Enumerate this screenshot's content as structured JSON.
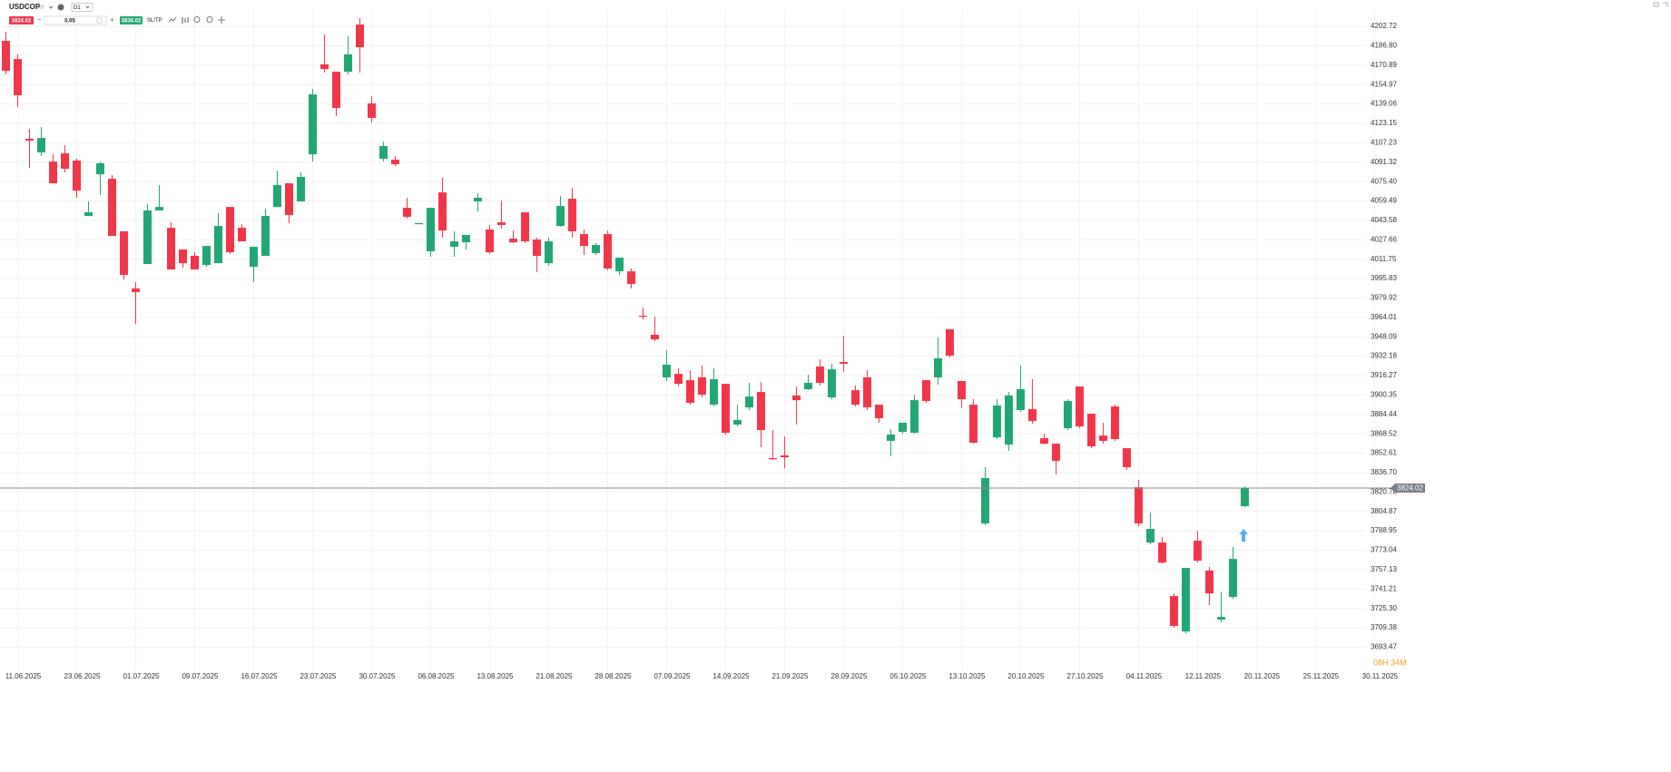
{
  "toolbar": {
    "symbol": "USDCOP",
    "instrument_type": "cfd",
    "timeframe": "D1",
    "sell": 3824.02,
    "volume": 0.05,
    "buy": 3836.02,
    "sltp": "SL/TP"
  },
  "countdown": "08H 34M",
  "chart_data": {
    "type": "candlestick",
    "up_color": "#22a774",
    "down_color": "#f2364a",
    "grid": true,
    "ylim": [
      3673.7,
      4216.9
    ],
    "yticks": [
      4202.72,
      {
        "value": 4186.8,
        "label": "4186.80"
      },
      4170.89,
      4154.97,
      4139.06,
      4123.15,
      4107.23,
      4091.32,
      {
        "value": 4075.4,
        "label": "4075.40"
      },
      4059.49,
      4043.58,
      4027.66,
      4011.75,
      3995.83,
      3979.92,
      3964.01,
      3948.09,
      3932.18,
      3916.27,
      3900.35,
      3884.44,
      3868.52,
      3852.61,
      {
        "value": 3836.7,
        "label": "3836.70"
      },
      3820.78,
      3804.87,
      3788.95,
      3773.04,
      3757.13,
      3741.21,
      {
        "value": 3725.3,
        "label": "3725.30"
      },
      3709.38,
      3693.47
    ],
    "xlim": [
      -0.5,
      117.2
    ],
    "xticks": [
      {
        "value": 1,
        "label": "11.06.2025"
      },
      {
        "value": 6,
        "label": "23.06.2025"
      },
      {
        "value": 11,
        "label": "01.07.2025"
      },
      {
        "value": 16,
        "label": "09.07.2025"
      },
      {
        "value": 21,
        "label": "16.07.2025"
      },
      {
        "value": 26,
        "label": "23.07.2025"
      },
      {
        "value": 31,
        "label": "30.07.2025"
      },
      {
        "value": 36,
        "label": "06.08.2025"
      },
      {
        "value": 41,
        "label": "13.08.2025"
      },
      {
        "value": 46,
        "label": "21.08.2025"
      },
      {
        "value": 51,
        "label": "28.08.2025"
      },
      {
        "value": 56,
        "label": "07.09.2025"
      },
      {
        "value": 61,
        "label": "14.09.2025"
      },
      {
        "value": 66,
        "label": "21.09.2025"
      },
      {
        "value": 71,
        "label": "28.09.2025"
      },
      {
        "value": 76,
        "label": "05.10.2025"
      },
      {
        "value": 81,
        "label": "13.10.2025"
      },
      {
        "value": 86,
        "label": "20.10.2025"
      },
      {
        "value": 91,
        "label": "27.10.2025"
      },
      {
        "value": 96,
        "label": "04.11.2025"
      },
      {
        "value": 101,
        "label": "12.11.2025"
      },
      {
        "value": 106,
        "label": "20.11.2025"
      },
      {
        "value": 111,
        "label": "25.11.2025"
      },
      {
        "value": 116,
        "label": "30.11.2025"
      }
    ],
    "open": [
      4190.8,
      4175.9,
      4110.5,
      4099.3,
      4091.8,
      4098.5,
      4092.6,
      4047.2,
      4081.4,
      4077.7,
      4034.6,
      3987.7,
      4007.8,
      4051.7,
      4037.5,
      4019.7,
      4014.5,
      4007.0,
      4008.5,
      4054.6,
      4037.5,
      4005.5,
      4014.5,
      4054.6,
      4074.0,
      4059.1,
      4097.8,
      4171.5,
      4165.5,
      4165.5,
      4204.2,
      4139.5,
      4094.1,
      4093.3,
      4053.9,
      4040.5,
      4018.2,
      4066.5,
      4021.9,
      4025.6,
      4059.1,
      4036.1,
      4042.0,
      4028.6,
      4050.2,
      4027.9,
      4008.5,
      4039.0,
      4061.3,
      4032.3,
      4016.7,
      4032.3,
      4001.8,
      4001.8,
      3965.4,
      3949.7,
      3914.8,
      3917.7,
      3912.5,
      3914.8,
      3892.4,
      3909.5,
      3876.1,
      3890.2,
      3902.8,
      3848.5,
      3850.8,
      3899.9,
      3905.1,
      3923.7,
      3898.4,
      3927.4,
      3904.3,
      3914.8,
      3892.4,
      3862.7,
      3870.1,
      3869.4,
      3912.5,
      3914.8,
      3954.2,
      3911.8,
      3892.4,
      3795.0,
      3865.6,
      3859.7,
      3888.0,
      3888.7,
      3864.9,
      3860.4,
      3873.1,
      3907.3,
      3885.0,
      3867.1,
      3890.9,
      3856.7,
      3824.7,
      3779.3,
      3779.3,
      3735.4,
      3706.4,
      3780.8,
      3756.3,
      3716.1,
      3734.7,
      3809.1
    ],
    "high": [
      4198.3,
      4179.7,
      4118.6,
      4120.1,
      4097.8,
      4105.2,
      4094.1,
      4059.1,
      4091.8,
      4080.7,
      4034.6,
      3992.9,
      4056.9,
      4072.5,
      4042.0,
      4019.7,
      4017.4,
      4022.6,
      4049.4,
      4054.6,
      4040.5,
      4021.9,
      4053.2,
      4084.4,
      4074.0,
      4082.9,
      4151.4,
      4196.0,
      4165.5,
      4194.5,
      4209.4,
      4145.4,
      4108.2,
      4096.3,
      4062.1,
      4041.3,
      4053.9,
      4078.5,
      4034.6,
      4031.6,
      4065.8,
      4039.8,
      4059.8,
      4035.3,
      4050.2,
      4029.4,
      4029.4,
      4063.6,
      4070.3,
      4036.1,
      4024.9,
      4035.3,
      4013.0,
      4004.1,
      3972.0,
      3964.6,
      3937.1,
      3922.2,
      3920.7,
      3924.4,
      3922.2,
      3909.5,
      3892.4,
      3910.3,
      3911.0,
      3871.6,
      3866.4,
      3907.3,
      3917.0,
      3929.6,
      3925.9,
      3949.0,
      3908.1,
      3920.7,
      3892.4,
      3872.3,
      3877.6,
      3900.6,
      3912.5,
      3947.5,
      3954.2,
      3911.8,
      3896.9,
      3841.1,
      3896.9,
      3902.8,
      3924.4,
      3913.3,
      3868.6,
      3860.4,
      3896.9,
      3907.3,
      3885.0,
      3877.6,
      3892.4,
      3856.7,
      3830.7,
      3803.9,
      3783.8,
      3737.6,
      3758.5,
      3789.0,
      3759.2,
      3739.1,
      3775.6,
      3825.5
    ],
    "low": [
      4163.3,
      4136.5,
      4086.6,
      4096.3,
      4074.0,
      4082.9,
      4062.1,
      4047.2,
      4064.3,
      4030.8,
      3995.1,
      3958.6,
      4007.8,
      4051.7,
      4003.3,
      4004.8,
      4003.3,
      4005.5,
      4008.5,
      4016.0,
      4026.4,
      3992.9,
      4014.5,
      4054.6,
      4041.3,
      4059.1,
      4091.8,
      4164.8,
      4129.1,
      4163.3,
      4164.8,
      4123.8,
      4091.8,
      4088.1,
      4045.0,
      4040.5,
      4013.7,
      4029.4,
      4013.7,
      4019.7,
      4050.9,
      4016.0,
      4036.8,
      4024.9,
      4024.9,
      4001.0,
      4006.3,
      4038.3,
      4029.4,
      4015.2,
      4015.2,
      4002.6,
      3998.8,
      3987.7,
      3962.4,
      3944.5,
      3911.8,
      3907.3,
      3892.4,
      3898.4,
      3890.9,
      3867.9,
      3874.6,
      3888.0,
      3857.5,
      3847.1,
      3840.3,
      3876.1,
      3904.3,
      3908.1,
      3896.9,
      3919.2,
      3890.9,
      3888.0,
      3877.6,
      3850.0,
      3868.6,
      3868.6,
      3893.9,
      3908.8,
      3931.1,
      3889.5,
      3860.4,
      3793.5,
      3864.2,
      3854.5,
      3886.5,
      3876.8,
      3859.7,
      3835.1,
      3871.6,
      3873.1,
      3856.7,
      3860.4,
      3862.7,
      3838.9,
      3792.7,
      3777.8,
      3762.2,
      3709.4,
      3704.9,
      3762.9,
      3728.0,
      3713.8,
      3733.2,
      3808.4
    ],
    "close": [
      4166.3,
      4146.2,
      4109.0,
      4111.2,
      4074.0,
      4085.9,
      4068.0,
      4050.2,
      4090.4,
      4030.8,
      3998.8,
      3984.7,
      4051.7,
      4054.6,
      4003.3,
      4008.5,
      4003.3,
      4022.6,
      4039.0,
      4017.4,
      4026.4,
      4021.9,
      4047.2,
      4072.5,
      4047.9,
      4079.2,
      4146.9,
      4167.7,
      4135.8,
      4179.7,
      4185.6,
      4127.6,
      4104.5,
      4089.6,
      4046.5,
      4041.3,
      4053.9,
      4035.3,
      4026.4,
      4031.6,
      4062.1,
      4017.4,
      4039.8,
      4025.6,
      4026.4,
      4014.5,
      4026.4,
      4055.4,
      4034.6,
      4022.6,
      4023.4,
      4004.1,
      4013.0,
      3991.4,
      3964.6,
      3946.0,
      3925.2,
      3909.5,
      3893.9,
      3900.6,
      3913.3,
      3869.4,
      3879.8,
      3899.1,
      3871.6,
      3847.8,
      3849.3,
      3896.1,
      3910.3,
      3910.3,
      3921.4,
      3925.9,
      3892.4,
      3890.2,
      3881.3,
      3867.9,
      3877.6,
      3896.1,
      3895.4,
      3930.4,
      3932.6,
      3896.9,
      3861.2,
      3832.2,
      3891.7,
      3899.9,
      3905.1,
      3879.0,
      3860.4,
      3846.3,
      3895.4,
      3874.6,
      3858.2,
      3862.7,
      3864.2,
      3841.1,
      3795.0,
      3790.5,
      3762.9,
      3710.9,
      3758.5,
      3764.4,
      3737.6,
      3718.3,
      3765.9,
      3824.02
    ]
  }
}
